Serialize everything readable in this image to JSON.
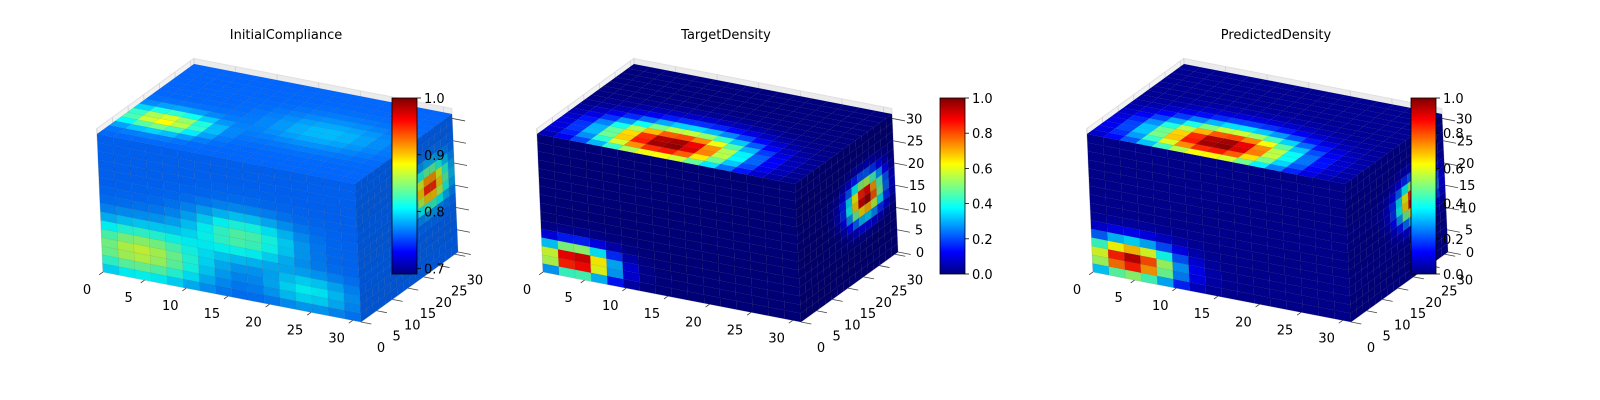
{
  "figure": {
    "colormap": "jet",
    "jet_stops": [
      "#00007f",
      "#0000ff",
      "#007fff",
      "#00ffff",
      "#7fff7f",
      "#ffff00",
      "#ff7f00",
      "#ff0000",
      "#7f0000"
    ],
    "pane_color": "#f2f2f2",
    "pane_grid_color": "#d0d0d0"
  },
  "chart_data": [
    {
      "type": "voxel-3d",
      "title": "InitialCompliance",
      "grid_size": [
        32,
        32,
        32
      ],
      "x_ticks": [
        0,
        5,
        10,
        15,
        20,
        25,
        30
      ],
      "y_ticks": [
        0,
        5,
        10,
        15,
        20,
        25,
        30
      ],
      "z_ticks": [],
      "colorbar": {
        "min": 0.69,
        "max": 1.0,
        "ticks": [
          0.7,
          0.8,
          0.9,
          1.0
        ],
        "tick_labels": [
          "0.7",
          "0.8",
          "0.9",
          "1.0"
        ]
      },
      "hotspots": [
        {
          "face": "front",
          "u": 0.15,
          "v": 0.2,
          "r": 0.3,
          "value": 0.88
        },
        {
          "face": "front",
          "u": 0.55,
          "v": 0.45,
          "r": 0.25,
          "value": 0.84
        },
        {
          "face": "front",
          "u": 0.8,
          "v": 0.15,
          "r": 0.2,
          "value": 0.81
        },
        {
          "face": "top",
          "u": 0.15,
          "v": 0.3,
          "r": 0.2,
          "value": 0.9
        },
        {
          "face": "top",
          "u": 0.7,
          "v": 0.5,
          "r": 0.3,
          "value": 0.79
        },
        {
          "face": "side",
          "u": 0.75,
          "v": 0.6,
          "r": 0.2,
          "value": 0.98
        }
      ],
      "base_value": 0.76
    },
    {
      "type": "voxel-3d",
      "title": "TargetDensity",
      "grid_size": [
        32,
        32,
        32
      ],
      "x_ticks": [
        0,
        5,
        10,
        15,
        20,
        25,
        30
      ],
      "y_ticks": [
        0,
        5,
        10,
        15,
        20,
        25,
        30
      ],
      "z_ticks": [
        0,
        5,
        10,
        15,
        20,
        25,
        30
      ],
      "colorbar": {
        "min": 0.0,
        "max": 1.0,
        "ticks": [
          0.0,
          0.2,
          0.4,
          0.6,
          0.8,
          1.0
        ],
        "tick_labels": [
          "0.0",
          "0.2",
          "0.4",
          "0.6",
          "0.8",
          "1.0"
        ]
      },
      "hotspots": [
        {
          "face": "front",
          "u": 0.13,
          "v": 0.13,
          "r": 0.18,
          "value": 1.0
        },
        {
          "face": "top",
          "u": 0.45,
          "v": 0.18,
          "r": 0.35,
          "value": 1.0
        },
        {
          "face": "side",
          "u": 0.7,
          "v": 0.55,
          "r": 0.22,
          "value": 1.0
        }
      ],
      "base_value": 0.0
    },
    {
      "type": "voxel-3d",
      "title": "PredictedDensity",
      "grid_size": [
        32,
        32,
        32
      ],
      "x_ticks": [
        0,
        5,
        10,
        15,
        20,
        25,
        30
      ],
      "y_ticks": [
        0,
        5,
        10,
        15,
        20,
        25,
        30
      ],
      "z_ticks": [
        0,
        5,
        10,
        15,
        20,
        25,
        30
      ],
      "colorbar": {
        "min": 0.0,
        "max": 1.0,
        "ticks": [
          0.0,
          0.2,
          0.4,
          0.6,
          0.8,
          1.0
        ],
        "tick_labels": [
          "0.0",
          "0.2",
          "0.4",
          "0.6",
          "0.8",
          "1.0"
        ]
      },
      "hotspots": [
        {
          "face": "front",
          "u": 0.15,
          "v": 0.14,
          "r": 0.22,
          "value": 0.95
        },
        {
          "face": "top",
          "u": 0.45,
          "v": 0.18,
          "r": 0.35,
          "value": 1.0
        },
        {
          "face": "side",
          "u": 0.7,
          "v": 0.55,
          "r": 0.22,
          "value": 0.98
        }
      ],
      "base_value": 0.02
    }
  ]
}
